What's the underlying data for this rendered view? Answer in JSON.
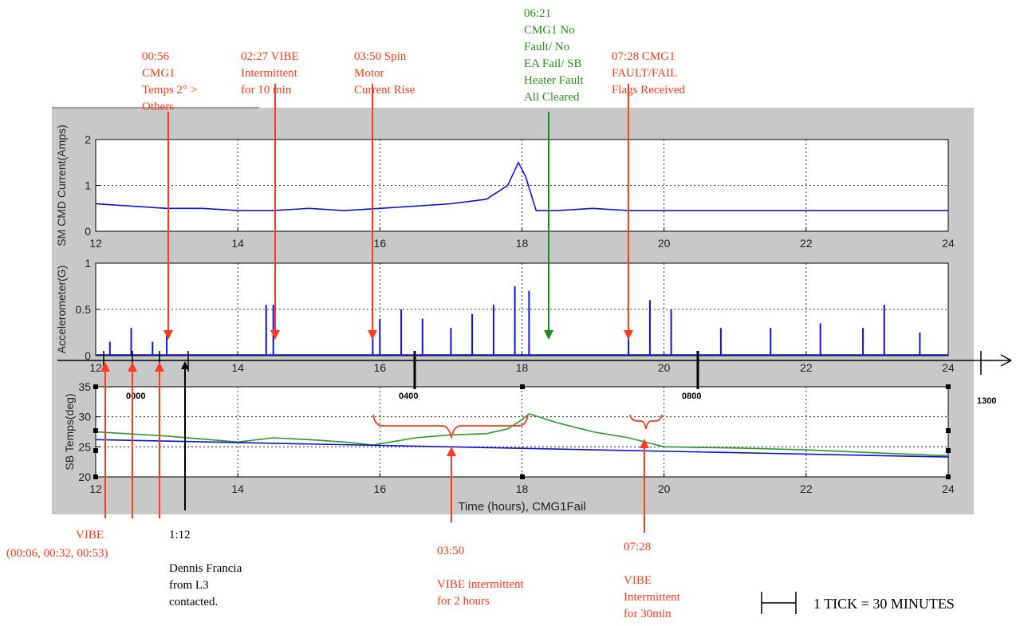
{
  "colors": {
    "red": "#ff3b1f",
    "green": "#2e8b22",
    "blue": "#1010e0",
    "green_line": "#2a9a2a",
    "black": "#000000",
    "panel_bg": "#c8c8c8"
  },
  "chart_data": [
    {
      "type": "line",
      "ylabel": "SM CMD Current(Amps)",
      "xlim": [
        12,
        24
      ],
      "ylim": [
        0,
        2
      ],
      "x_ticks": [
        "12",
        "14",
        "16",
        "18",
        "20",
        "22",
        "24"
      ],
      "y_ticks": [
        "0",
        "1",
        "2"
      ],
      "grid": true,
      "series": [
        {
          "color": "blue",
          "x": [
            12.0,
            12.5,
            13.0,
            13.5,
            14.0,
            14.5,
            15.0,
            15.5,
            16.0,
            16.5,
            17.0,
            17.5,
            17.8,
            17.95,
            18.05,
            18.2,
            18.5,
            19.0,
            19.5,
            20.0,
            20.5,
            21.0,
            21.5,
            22.0,
            22.5,
            23.0,
            23.5,
            24.0
          ],
          "y": [
            0.6,
            0.55,
            0.5,
            0.5,
            0.45,
            0.45,
            0.5,
            0.45,
            0.5,
            0.55,
            0.6,
            0.7,
            1.0,
            1.5,
            1.2,
            0.45,
            0.45,
            0.5,
            0.45,
            0.45,
            0.45,
            0.45,
            0.45,
            0.45,
            0.45,
            0.45,
            0.45,
            0.45
          ]
        }
      ]
    },
    {
      "type": "line",
      "ylabel": "Accelerometer(G)",
      "xlim": [
        12,
        24
      ],
      "ylim": [
        0,
        1
      ],
      "x_ticks": [
        "12",
        "14",
        "16",
        "18",
        "20",
        "22",
        "24"
      ],
      "y_ticks": [
        "0",
        "0.5",
        "1"
      ],
      "grid": true,
      "series": [
        {
          "color": "blue",
          "x": [
            12.2,
            12.5,
            12.8,
            13.0,
            14.4,
            14.5,
            15.9,
            16.0,
            16.3,
            16.6,
            17.0,
            17.3,
            17.6,
            17.9,
            18.1,
            19.5,
            19.8,
            20.1,
            20.8,
            21.5,
            22.2,
            22.8,
            23.1,
            23.6
          ],
          "y": [
            0.15,
            0.3,
            0.15,
            0.25,
            0.55,
            0.55,
            0.2,
            0.4,
            0.5,
            0.4,
            0.3,
            0.45,
            0.55,
            0.75,
            0.7,
            0.3,
            0.6,
            0.5,
            0.3,
            0.3,
            0.35,
            0.3,
            0.55,
            0.25
          ]
        }
      ]
    },
    {
      "type": "line",
      "ylabel": "SB Temps(deg)",
      "xlabel": "Time (hours), CMG1Fail",
      "xlim": [
        12,
        24
      ],
      "ylim": [
        20,
        35
      ],
      "x_ticks": [
        "12",
        "14",
        "16",
        "18",
        "20",
        "22",
        "24"
      ],
      "y_ticks": [
        "20",
        "25",
        "30",
        "35"
      ],
      "grid": true,
      "series": [
        {
          "color": "green",
          "x": [
            12,
            13,
            14,
            14.5,
            15,
            15.5,
            15.9,
            16.5,
            17.0,
            17.5,
            17.8,
            18.0,
            18.1,
            18.5,
            19.0,
            19.5,
            20.0,
            21.0,
            22.0,
            23.0,
            24.0
          ],
          "y": [
            27.5,
            26.8,
            25.8,
            26.5,
            26.2,
            25.8,
            25.3,
            26.5,
            27.0,
            27.2,
            28.0,
            29.5,
            30.5,
            29.0,
            27.5,
            26.5,
            25.0,
            24.8,
            24.5,
            24.0,
            23.5
          ],
          "marker": ""
        },
        {
          "color": "blue",
          "x": [
            12,
            24
          ],
          "y": [
            26.2,
            23.3
          ]
        }
      ]
    }
  ],
  "top_annotations": [
    {
      "lines": [
        "00:56",
        "CMG1",
        "Temps 2° >",
        "Others"
      ],
      "color": "red"
    },
    {
      "lines": [
        "02:27 VIBE",
        "Intermittent",
        "for 10 min"
      ],
      "color": "red"
    },
    {
      "lines": [
        "03:50 Spin",
        "Motor",
        "Current Rise"
      ],
      "color": "red"
    },
    {
      "lines": [
        "06:21",
        "CMG1 No",
        "Fault/ No",
        "EA Fail/ SB",
        "Heater Fault",
        "All Cleared"
      ],
      "color": "green"
    },
    {
      "lines": [
        "07:28 CMG1",
        "FAULT/FAIL",
        "Flags Received"
      ],
      "color": "red"
    }
  ],
  "timeline": {
    "labels": [
      "0000",
      "0400",
      "0800",
      "1300"
    ]
  },
  "bottom_annotations": [
    {
      "lines": [
        "VIBE",
        "(00:06, 00:32, 00:53)"
      ],
      "color": "red"
    },
    {
      "lines": [
        "1:12",
        "",
        "Dennis Francia",
        "from L3",
        "contacted."
      ],
      "color": "black"
    },
    {
      "lines": [
        "03:50",
        "",
        "VIBE intermittent",
        "for 2 hours"
      ],
      "color": "red"
    },
    {
      "lines": [
        "07:28",
        "",
        "VIBE",
        "Intermittent",
        "for 30min"
      ],
      "color": "red"
    }
  ],
  "legend_note": "1 TICK = 30 MINUTES"
}
